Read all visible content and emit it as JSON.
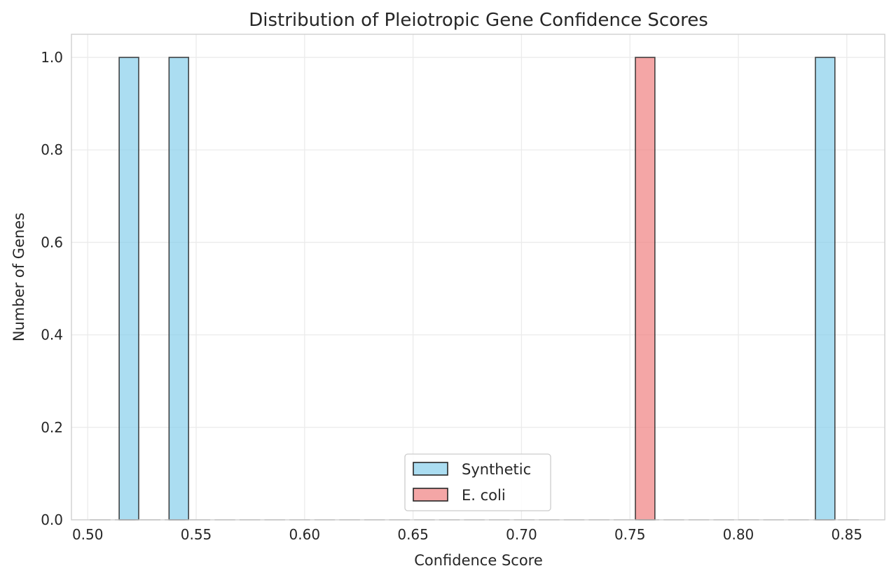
{
  "chart_data": {
    "type": "bar",
    "title": "Distribution of Pleiotropic Gene Confidence Scores",
    "xlabel": "Confidence Score",
    "ylabel": "Number of Genes",
    "xlim": [
      0.4925,
      0.8675
    ],
    "ylim": [
      0,
      1.05
    ],
    "xticks": [
      "0.50",
      "0.55",
      "0.60",
      "0.65",
      "0.70",
      "0.75",
      "0.80",
      "0.85"
    ],
    "yticks": [
      "0.0",
      "0.2",
      "0.4",
      "0.6",
      "0.8",
      "1.0"
    ],
    "grid": true,
    "legend_position": "bottom-center",
    "bin_width": 0.0115,
    "bin_range": [
      0.5,
      0.8565
    ],
    "series": [
      {
        "name": "Synthetic",
        "color": "#87ceeb",
        "bars": [
          {
            "x_start": 0.5145,
            "x_end": 0.5235,
            "count": 1
          },
          {
            "x_start": 0.5375,
            "x_end": 0.5465,
            "count": 1
          },
          {
            "x_start": 0.8355,
            "x_end": 0.8445,
            "count": 1
          }
        ]
      },
      {
        "name": "E. coli",
        "color": "#f08080",
        "bars": [
          {
            "x_start": 0.7525,
            "x_end": 0.7615,
            "count": 1
          }
        ]
      }
    ]
  }
}
